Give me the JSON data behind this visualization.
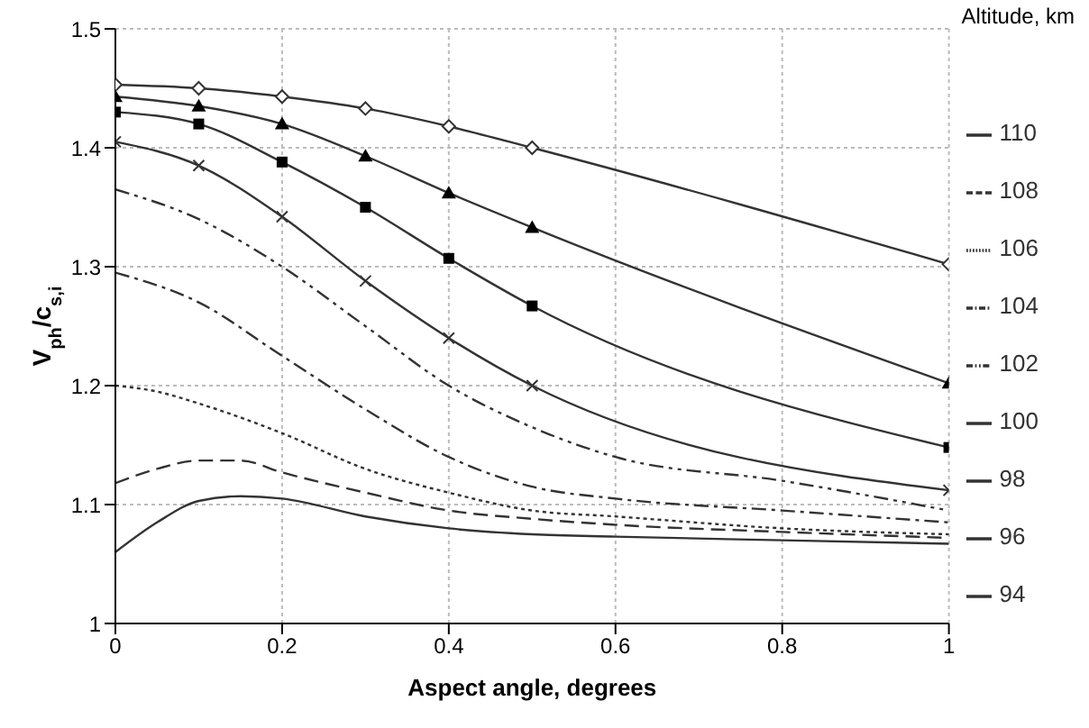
{
  "chart_data": {
    "type": "line",
    "xlabel": "Aspect angle, degrees",
    "ylabel": "V$_{ph}$/c$_{s,i}$",
    "legend_title": "Altitude, km",
    "xlim": [
      0,
      1
    ],
    "xticks": [
      0,
      0.2,
      0.4,
      0.6,
      0.8,
      1
    ],
    "ylim": [
      1,
      1.5
    ],
    "yticks": [
      1,
      1.1,
      1.2,
      1.3,
      1.4,
      1.5
    ],
    "grid": true,
    "legend": "right",
    "series": [
      {
        "name": "110",
        "color": "#333333",
        "line_style": "solid",
        "marker": "none",
        "x": [
          0,
          0.05,
          0.1,
          0.15,
          0.2,
          0.3,
          0.4,
          0.5,
          0.6,
          0.8,
          1
        ],
        "values": [
          1.06,
          1.085,
          1.103,
          1.107,
          1.105,
          1.09,
          1.08,
          1.075,
          1.073,
          1.07,
          1.067
        ]
      },
      {
        "name": "108",
        "color": "#333333",
        "line_style": "dashed",
        "marker": "none",
        "x": [
          0,
          0.05,
          0.1,
          0.15,
          0.2,
          0.3,
          0.4,
          0.5,
          0.6,
          0.8,
          1
        ],
        "values": [
          1.118,
          1.13,
          1.137,
          1.137,
          1.127,
          1.11,
          1.095,
          1.088,
          1.083,
          1.077,
          1.072
        ]
      },
      {
        "name": "106",
        "color": "#333333",
        "line_style": "dotted",
        "marker": "none",
        "x": [
          0,
          0.05,
          0.1,
          0.2,
          0.3,
          0.4,
          0.5,
          0.6,
          0.8,
          1
        ],
        "values": [
          1.2,
          1.195,
          1.185,
          1.16,
          1.13,
          1.11,
          1.095,
          1.09,
          1.08,
          1.075
        ]
      },
      {
        "name": "104",
        "color": "#333333",
        "line_style": "dashdot",
        "marker": "none",
        "x": [
          0,
          0.1,
          0.2,
          0.3,
          0.4,
          0.5,
          0.6,
          0.8,
          1
        ],
        "values": [
          1.295,
          1.27,
          1.225,
          1.18,
          1.14,
          1.115,
          1.105,
          1.095,
          1.085
        ]
      },
      {
        "name": "102",
        "color": "#333333",
        "line_style": "dashdotdot",
        "marker": "none",
        "x": [
          0,
          0.1,
          0.2,
          0.3,
          0.4,
          0.5,
          0.6,
          0.8,
          1
        ],
        "values": [
          1.365,
          1.34,
          1.3,
          1.25,
          1.2,
          1.165,
          1.14,
          1.12,
          1.095
        ]
      },
      {
        "name": "100",
        "color": "#333333",
        "line_style": "solid",
        "marker": "cross",
        "x": [
          0,
          0.1,
          0.2,
          0.3,
          0.4,
          0.5,
          1
        ],
        "values": [
          1.405,
          1.385,
          1.342,
          1.288,
          1.24,
          1.2,
          1.112
        ]
      },
      {
        "name": "98",
        "color": "#333333",
        "line_style": "solid",
        "marker": "square",
        "x": [
          0,
          0.1,
          0.2,
          0.3,
          0.4,
          0.5,
          1
        ],
        "values": [
          1.43,
          1.42,
          1.388,
          1.35,
          1.307,
          1.267,
          1.148
        ]
      },
      {
        "name": "96",
        "color": "#333333",
        "line_style": "solid",
        "marker": "triangle",
        "x": [
          0,
          0.1,
          0.2,
          0.3,
          0.4,
          0.5,
          1
        ],
        "values": [
          1.443,
          1.435,
          1.42,
          1.393,
          1.362,
          1.333,
          1.202
        ]
      },
      {
        "name": "94",
        "color": "#333333",
        "line_style": "solid",
        "marker": "diamond",
        "x": [
          0,
          0.1,
          0.2,
          0.3,
          0.4,
          0.5,
          1
        ],
        "values": [
          1.453,
          1.45,
          1.443,
          1.433,
          1.418,
          1.4,
          1.302
        ]
      }
    ]
  }
}
